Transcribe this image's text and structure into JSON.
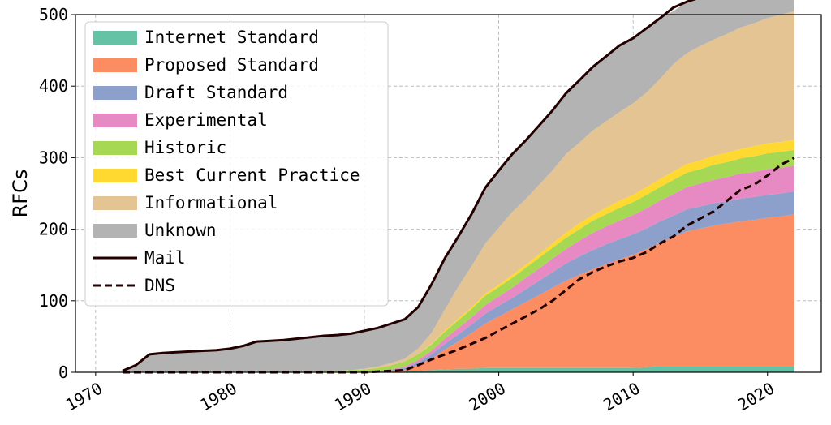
{
  "chart_data": {
    "type": "area",
    "title": "",
    "xlabel": "",
    "ylabel": "RFCs",
    "xlim": [
      1968.5,
      2024
    ],
    "ylim": [
      0,
      500
    ],
    "x_ticks": [
      1970,
      1980,
      1990,
      2000,
      2010,
      2020
    ],
    "y_ticks": [
      0,
      100,
      200,
      300,
      400,
      500
    ],
    "grid": true,
    "legend_position": "top-left",
    "x": [
      1972,
      1973,
      1974,
      1975,
      1976,
      1977,
      1978,
      1979,
      1980,
      1981,
      1982,
      1983,
      1984,
      1985,
      1986,
      1987,
      1988,
      1989,
      1990,
      1991,
      1992,
      1993,
      1994,
      1995,
      1996,
      1997,
      1998,
      1999,
      2000,
      2001,
      2002,
      2003,
      2004,
      2005,
      2006,
      2007,
      2008,
      2009,
      2010,
      2011,
      2012,
      2013,
      2014,
      2015,
      2016,
      2017,
      2018,
      2019,
      2020,
      2021,
      2022
    ],
    "series": [
      {
        "name": "Internet Standard",
        "color": "#66c2a5",
        "values": [
          0,
          0,
          0,
          0,
          0,
          0,
          0,
          0,
          0,
          0,
          0,
          0,
          0,
          0,
          0,
          0,
          0,
          0,
          0,
          0,
          0,
          1,
          2,
          3,
          4,
          5,
          5,
          6,
          6,
          6,
          6,
          6,
          6,
          6,
          6,
          6,
          6,
          6,
          6,
          7,
          9,
          9,
          9,
          9,
          9,
          9,
          9,
          9,
          9,
          9,
          9
        ]
      },
      {
        "name": "Proposed Standard",
        "color": "#fc8d62",
        "values": [
          0,
          0,
          0,
          0,
          0,
          0,
          0,
          0,
          0,
          0,
          0,
          0,
          0,
          0,
          0,
          0,
          0,
          0,
          0,
          0,
          1,
          2,
          8,
          16,
          28,
          38,
          50,
          62,
          72,
          82,
          92,
          102,
          112,
          122,
          130,
          138,
          145,
          152,
          158,
          165,
          172,
          180,
          188,
          192,
          196,
          199,
          202,
          204,
          207,
          209,
          212
        ]
      },
      {
        "name": "Draft Standard",
        "color": "#8da0cb",
        "values": [
          0,
          0,
          0,
          0,
          0,
          0,
          0,
          0,
          0,
          0,
          0,
          0,
          0,
          0,
          0,
          0,
          0,
          0,
          0,
          1,
          2,
          3,
          4,
          6,
          8,
          10,
          12,
          14,
          15,
          16,
          18,
          20,
          22,
          24,
          26,
          27,
          28,
          28,
          29,
          29,
          30,
          30,
          31,
          31,
          31,
          31,
          32,
          32,
          32,
          32,
          32
        ]
      },
      {
        "name": "Experimental",
        "color": "#e78ac3",
        "values": [
          0,
          0,
          0,
          0,
          0,
          0,
          0,
          0,
          0,
          0,
          0,
          0,
          0,
          0,
          0,
          0,
          0,
          0,
          0,
          0,
          1,
          2,
          3,
          5,
          7,
          9,
          10,
          12,
          13,
          14,
          16,
          17,
          19,
          20,
          22,
          24,
          25,
          26,
          27,
          28,
          29,
          30,
          31,
          32,
          33,
          34,
          35,
          35,
          36,
          36,
          36
        ]
      },
      {
        "name": "Historic",
        "color": "#a6d854",
        "values": [
          0,
          0,
          0,
          0,
          0,
          0,
          0,
          0,
          0,
          0,
          0,
          0,
          0,
          0,
          0,
          1,
          2,
          3,
          4,
          5,
          6,
          7,
          8,
          9,
          10,
          11,
          12,
          13,
          13,
          14,
          14,
          15,
          15,
          16,
          16,
          17,
          17,
          18,
          18,
          19,
          19,
          20,
          20,
          20,
          21,
          21,
          21,
          22,
          22,
          22,
          22
        ]
      },
      {
        "name": "Best Current Practice",
        "color": "#ffd92f",
        "values": [
          0,
          0,
          0,
          0,
          0,
          0,
          0,
          0,
          0,
          0,
          0,
          0,
          0,
          0,
          0,
          0,
          0,
          0,
          0,
          0,
          0,
          0,
          0,
          1,
          1,
          2,
          2,
          3,
          3,
          4,
          4,
          5,
          6,
          7,
          8,
          8,
          9,
          10,
          10,
          11,
          11,
          12,
          12,
          12,
          13,
          13,
          13,
          14,
          14,
          14,
          14
        ]
      },
      {
        "name": "Informational",
        "color": "#e5c494",
        "values": [
          0,
          0,
          0,
          0,
          0,
          0,
          0,
          0,
          0,
          0,
          0,
          0,
          0,
          0,
          0,
          0,
          0,
          0,
          1,
          2,
          3,
          4,
          8,
          15,
          30,
          45,
          58,
          70,
          80,
          88,
          92,
          97,
          102,
          110,
          113,
          118,
          121,
          124,
          128,
          132,
          140,
          150,
          155,
          160,
          162,
          166,
          170,
          172,
          175,
          178,
          180
        ]
      },
      {
        "name": "Unknown",
        "color": "#b3b3b3",
        "values": [
          2,
          10,
          25,
          27,
          28,
          29,
          30,
          31,
          33,
          37,
          43,
          44,
          45,
          47,
          49,
          51,
          52,
          53,
          53,
          54,
          55,
          55,
          58,
          68,
          72,
          70,
          73,
          78,
          80,
          81,
          82,
          83,
          84,
          85,
          87,
          89,
          91,
          93,
          91,
          90,
          85,
          74,
          72,
          68,
          63,
          57,
          48,
          46,
          45,
          45,
          50
        ]
      },
      {
        "name": "Mail",
        "color": "#220000",
        "style": "solid",
        "values": [
          2,
          10,
          25,
          27,
          28,
          29,
          30,
          31,
          33,
          37,
          43,
          44,
          45,
          47,
          49,
          51,
          52,
          54,
          58,
          62,
          68,
          74,
          91,
          123,
          160,
          190,
          222,
          258,
          282,
          305,
          324,
          345,
          366,
          390,
          408,
          427,
          442,
          457,
          467,
          481,
          495,
          510,
          518,
          524,
          528,
          530,
          530,
          534,
          540,
          543,
          555
        ]
      },
      {
        "name": "DNS",
        "color": "#220000",
        "style": "dashed",
        "values": [
          0,
          0,
          0,
          0,
          0,
          0,
          0,
          0,
          0,
          0,
          0,
          0,
          0,
          0,
          0,
          0,
          0,
          0,
          0,
          1,
          2,
          3,
          10,
          18,
          25,
          32,
          40,
          48,
          58,
          68,
          78,
          88,
          100,
          115,
          130,
          140,
          148,
          155,
          160,
          168,
          180,
          190,
          205,
          215,
          225,
          240,
          255,
          262,
          275,
          290,
          300
        ]
      }
    ]
  }
}
